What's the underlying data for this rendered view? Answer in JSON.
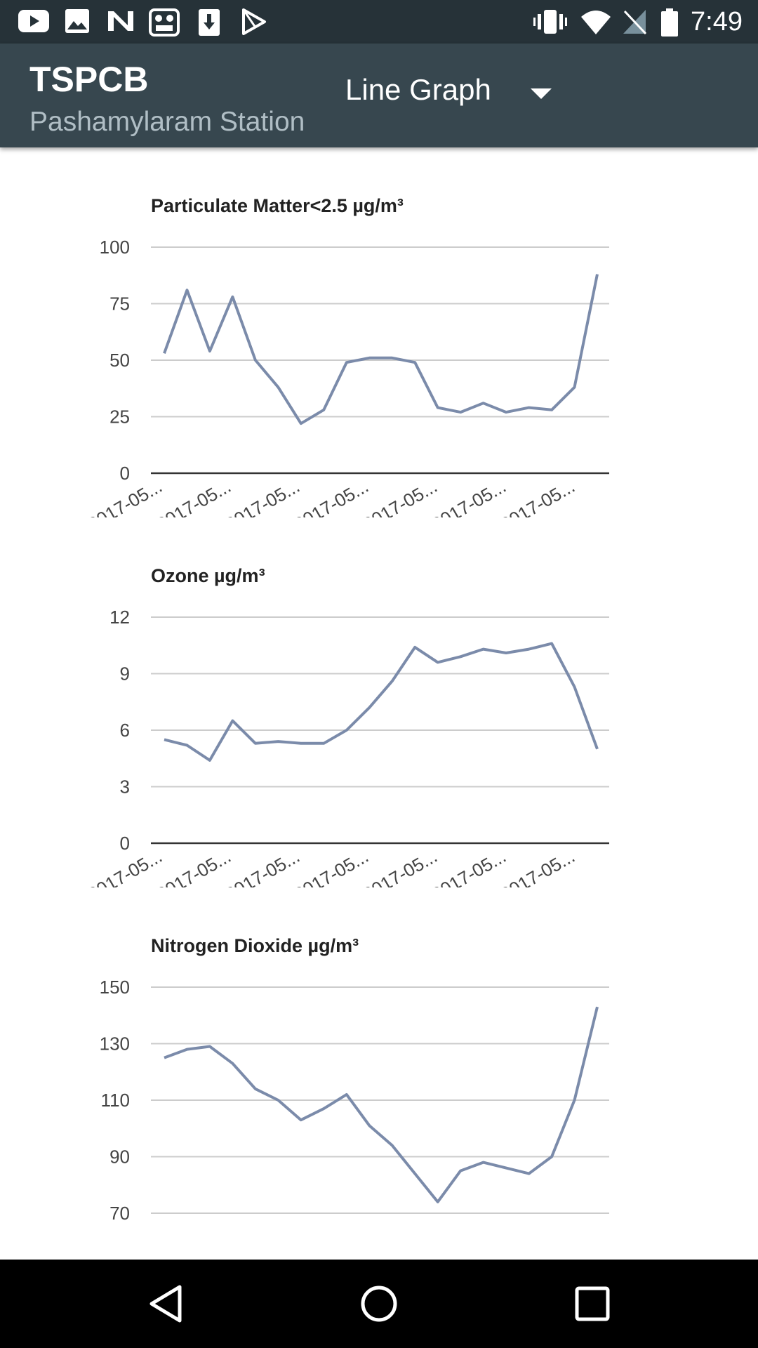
{
  "status_bar": {
    "time": "7:49",
    "left_icons": [
      "youtube-icon",
      "image-icon",
      "news-icon",
      "robot-app-icon",
      "download-icon",
      "play-store-icon"
    ],
    "right_icons": [
      "vibrate-icon",
      "wifi-icon",
      "no-signal-icon",
      "battery-icon"
    ]
  },
  "app_bar": {
    "title": "TSPCB",
    "subtitle": "Pashamylaram Station",
    "view_selector": {
      "selected": "Line Graph"
    }
  },
  "colors": {
    "status_bar": "#263238",
    "app_bar": "#37474f",
    "series_line": "#7b8baa",
    "gridline": "#cccccc",
    "baseline": "#333333"
  },
  "chart_data": [
    {
      "type": "line",
      "title": "Particulate Matter<2.5 µg/m³",
      "xlabel": "",
      "ylabel": "",
      "ylim": [
        0,
        100
      ],
      "yticks": [
        "0",
        "25",
        "50",
        "75",
        "100"
      ],
      "x_tick_labels": [
        "2017-05...",
        "2017-05...",
        "2017-05...",
        "2017-05...",
        "2017-05...",
        "2017-05...",
        "2017-05..."
      ],
      "series": [
        {
          "name": "PM2.5",
          "values": [
            53,
            81,
            54,
            78,
            50,
            38,
            22,
            28,
            49,
            51,
            51,
            49,
            29,
            27,
            31,
            27,
            29,
            28,
            38,
            88
          ]
        }
      ]
    },
    {
      "type": "line",
      "title": "Ozone µg/m³",
      "xlabel": "",
      "ylabel": "",
      "ylim": [
        0,
        12
      ],
      "yticks": [
        "0",
        "3",
        "6",
        "9",
        "12"
      ],
      "x_tick_labels": [
        "2017-05...",
        "2017-05...",
        "2017-05...",
        "2017-05...",
        "2017-05...",
        "2017-05...",
        "2017-05..."
      ],
      "series": [
        {
          "name": "Ozone",
          "values": [
            5.5,
            5.2,
            4.4,
            6.5,
            5.3,
            5.4,
            5.3,
            5.3,
            6.0,
            7.2,
            8.6,
            10.4,
            9.6,
            9.9,
            10.3,
            10.1,
            10.3,
            10.6,
            8.3,
            5.0
          ]
        }
      ]
    },
    {
      "type": "line",
      "title": "Nitrogen Dioxide µg/m³",
      "xlabel": "",
      "ylabel": "",
      "ylim": [
        70,
        150
      ],
      "yticks": [
        "70",
        "90",
        "110",
        "130",
        "150"
      ],
      "x_tick_labels": [],
      "series": [
        {
          "name": "NO2",
          "values": [
            125,
            128,
            129,
            123,
            114,
            110,
            103,
            107,
            112,
            101,
            94,
            84,
            74,
            85,
            88,
            86,
            84,
            90,
            110,
            143
          ]
        }
      ]
    }
  ]
}
